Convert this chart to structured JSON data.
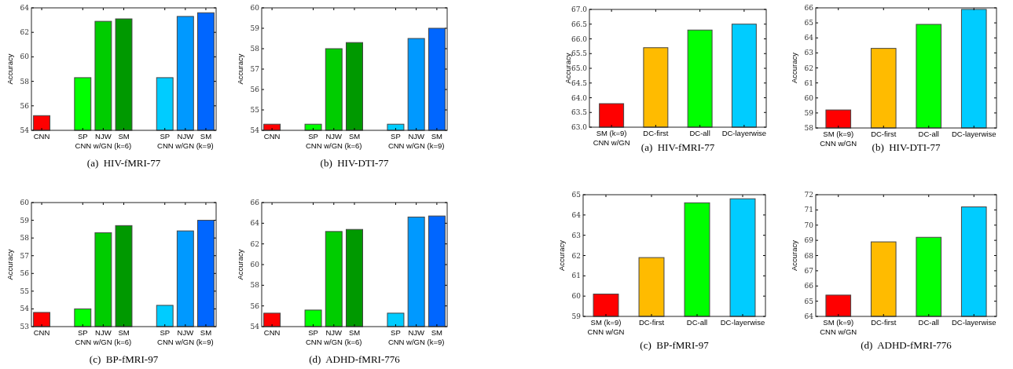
{
  "chart_data": [
    {
      "type": "bar",
      "title": "(a)  HIV-fMRI-77",
      "ylabel": "Accuracy",
      "categories": [
        "CNN",
        null,
        "SP",
        "NJW\nCNN w/GN (k=6)",
        "SM",
        null,
        "SP",
        "NJW\nCNN w/GN (k=9)",
        "SM"
      ],
      "values": [
        55.2,
        null,
        58.3,
        62.9,
        63.1,
        null,
        58.3,
        63.3,
        63.6
      ],
      "colors": [
        "#ff0000",
        null,
        "#00ff00",
        "#00cc00",
        "#009900",
        null,
        "#00ccff",
        "#0099ff",
        "#0066ff"
      ],
      "ylim": [
        54,
        64
      ],
      "yticks": [
        54,
        56,
        58,
        60,
        62,
        64
      ]
    },
    {
      "type": "bar",
      "title": "(b)  HIV-DTI-77",
      "ylabel": "Accuracy",
      "categories": [
        "CNN",
        null,
        "SP",
        "NJW\nCNN w/GN (k=6)",
        "SM",
        null,
        "SP",
        "NJW\nCNN w/GN (k=9)",
        "SM"
      ],
      "values": [
        54.3,
        null,
        54.3,
        58.0,
        58.3,
        null,
        54.3,
        58.5,
        59.0
      ],
      "colors": [
        "#ff0000",
        null,
        "#00ff00",
        "#00cc00",
        "#009900",
        null,
        "#00ccff",
        "#0099ff",
        "#0066ff"
      ],
      "ylim": [
        54,
        60
      ],
      "yticks": [
        54,
        55,
        56,
        57,
        58,
        59,
        60
      ]
    },
    {
      "type": "bar",
      "title": "(c)  BP-fMRI-97",
      "ylabel": "Accuracy",
      "categories": [
        "CNN",
        null,
        "SP",
        "NJW\nCNN w/GN (k=6)",
        "SM",
        null,
        "SP",
        "NJW\nCNN w/GN (k=9)",
        "SM"
      ],
      "values": [
        53.8,
        null,
        54.0,
        58.3,
        58.7,
        null,
        54.2,
        58.4,
        59.0
      ],
      "colors": [
        "#ff0000",
        null,
        "#00ff00",
        "#00cc00",
        "#009900",
        null,
        "#00ccff",
        "#0099ff",
        "#0066ff"
      ],
      "ylim": [
        53,
        60
      ],
      "yticks": [
        53,
        54,
        55,
        56,
        57,
        58,
        59,
        60
      ]
    },
    {
      "type": "bar",
      "title": "(d)  ADHD-fMRI-776",
      "ylabel": "Accuracy",
      "categories": [
        "CNN",
        null,
        "SP",
        "NJW\nCNN w/GN (k=6)",
        "SM",
        null,
        "SP",
        "NJW\nCNN w/GN (k=9)",
        "SM"
      ],
      "values": [
        55.3,
        null,
        55.6,
        63.2,
        63.4,
        null,
        55.3,
        64.6,
        64.7
      ],
      "colors": [
        "#ff0000",
        null,
        "#00ff00",
        "#00cc00",
        "#009900",
        null,
        "#00ccff",
        "#0099ff",
        "#0066ff"
      ],
      "ylim": [
        54,
        66
      ],
      "yticks": [
        54,
        56,
        58,
        60,
        62,
        64,
        66
      ]
    },
    {
      "type": "bar",
      "title": "(a)  HIV-fMRI-77",
      "ylabel": "Accuracy",
      "categories": [
        "SM (k=9)\nCNN w/GN",
        "DC-first",
        "DC-all",
        "DC-layerwise"
      ],
      "values": [
        63.8,
        65.7,
        66.3,
        66.5
      ],
      "colors": [
        "#ff0000",
        "#ffbb00",
        "#00ff00",
        "#00ccff"
      ],
      "ylim": [
        63,
        67
      ],
      "yticks": [
        {
          "value": 63,
          "label": "63.0"
        },
        {
          "value": 63.5,
          "label": "63.5"
        },
        {
          "value": 64,
          "label": "64.0"
        },
        {
          "value": 64.5,
          "label": "64.5"
        },
        {
          "value": 65,
          "label": "65.0"
        },
        {
          "value": 65.5,
          "label": "65.5"
        },
        {
          "value": 66,
          "label": "66.0"
        },
        {
          "value": 66.5,
          "label": "66.5"
        },
        {
          "value": 67,
          "label": "67.0"
        }
      ]
    },
    {
      "type": "bar",
      "title": "(b)  HIV-DTI-77",
      "ylabel": "Accuracy",
      "categories": [
        "SM (k=9)\nCNN w/GN",
        "DC-first",
        "DC-all",
        "DC-layerwise"
      ],
      "values": [
        59.2,
        63.3,
        64.9,
        65.9
      ],
      "colors": [
        "#ff0000",
        "#ffbb00",
        "#00ff00",
        "#00ccff"
      ],
      "ylim": [
        58,
        66
      ],
      "yticks": [
        58,
        59,
        60,
        61,
        62,
        63,
        64,
        65,
        66
      ]
    },
    {
      "type": "bar",
      "title": "(c)  BP-fMRI-97",
      "ylabel": "Accuracy",
      "categories": [
        "SM (k=9)\nCNN w/GN",
        "DC-first",
        "DC-all",
        "DC-layerwise"
      ],
      "values": [
        60.1,
        61.9,
        64.6,
        64.8
      ],
      "colors": [
        "#ff0000",
        "#ffbb00",
        "#00ff00",
        "#00ccff"
      ],
      "ylim": [
        59,
        65
      ],
      "yticks": [
        59,
        60,
        61,
        62,
        63,
        64,
        65
      ]
    },
    {
      "type": "bar",
      "title": "(d)  ADHD-fMRI-776",
      "ylabel": "Accuracy",
      "categories": [
        "SM (k=9)\nCNN w/GN",
        "DC-first",
        "DC-all",
        "DC-layerwise"
      ],
      "values": [
        65.4,
        68.9,
        69.2,
        71.2
      ],
      "colors": [
        "#ff0000",
        "#ffbb00",
        "#00ff00",
        "#00ccff"
      ],
      "ylim": [
        64,
        72
      ],
      "yticks": [
        64,
        65,
        66,
        67,
        68,
        69,
        70,
        71,
        72
      ]
    }
  ]
}
